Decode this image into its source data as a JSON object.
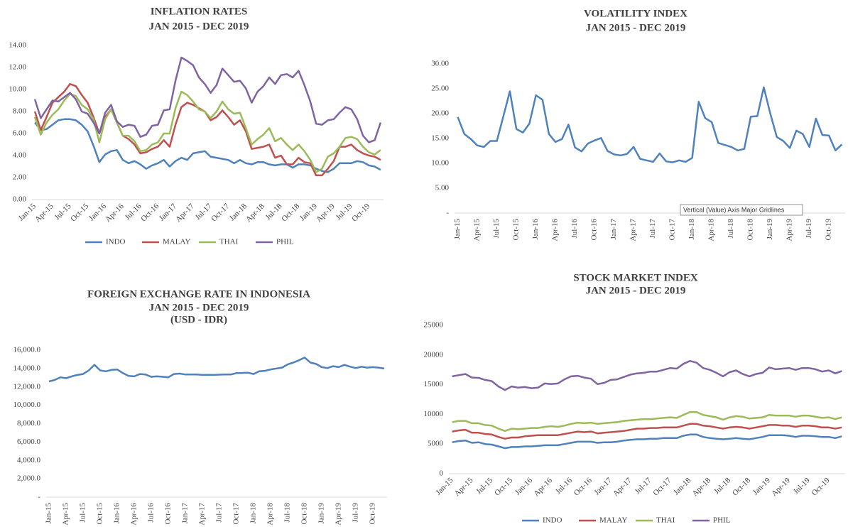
{
  "chart_data": [
    {
      "type": "line",
      "title": "INFLATION RATES",
      "subtitle": [
        "JAN 2015 - DEC 2019"
      ],
      "categories": [
        "Jan-15",
        null,
        null,
        "Apr-15",
        null,
        null,
        "Jul-15",
        null,
        null,
        "Oct-15",
        null,
        null,
        "Jan-16",
        null,
        null,
        "Apr-16",
        null,
        null,
        "Jul-16",
        null,
        null,
        "Oct-16",
        null,
        null,
        "Jan-17",
        null,
        null,
        "Apr-17",
        null,
        null,
        "Jul-17",
        null,
        null,
        "Oct-17",
        null,
        null,
        "Jan-18",
        null,
        null,
        "Apr-18",
        null,
        null,
        "Jul-18",
        null,
        null,
        "Oct-18",
        null,
        null,
        "Jan-19",
        null,
        null,
        "Apr-19",
        null,
        null,
        "Jul-19",
        null,
        null,
        "Oct-19",
        null,
        null
      ],
      "ylim": [
        0,
        14
      ],
      "yticks": [
        {
          "value": 0,
          "label": "0.00"
        },
        {
          "value": 2,
          "label": "2.00"
        },
        {
          "value": 4,
          "label": "4.00"
        },
        {
          "value": 6,
          "label": "6.00"
        },
        {
          "value": 8,
          "label": "8.00"
        },
        {
          "value": 10,
          "label": "10.00"
        },
        {
          "value": 12,
          "label": "12.00"
        },
        {
          "value": 14,
          "label": "14.00"
        }
      ],
      "legend": "bottom",
      "series": [
        {
          "name": "INDO",
          "color": "#4f81bd",
          "values": [
            7.0,
            6.3,
            6.4,
            6.8,
            7.2,
            7.3,
            7.3,
            7.2,
            6.8,
            6.2,
            4.9,
            3.4,
            4.1,
            4.4,
            4.5,
            3.6,
            3.3,
            3.5,
            3.2,
            2.8,
            3.1,
            3.3,
            3.6,
            3.0,
            3.5,
            3.8,
            3.6,
            4.2,
            4.3,
            4.4,
            3.9,
            3.8,
            3.7,
            3.6,
            3.3,
            3.6,
            3.3,
            3.2,
            3.4,
            3.4,
            3.2,
            3.1,
            3.2,
            3.2,
            2.9,
            3.2,
            3.2,
            3.1,
            2.8,
            2.6,
            2.5,
            2.8,
            3.3,
            3.3,
            3.3,
            3.5,
            3.4,
            3.1,
            3.0,
            2.7
          ]
        },
        {
          "name": "MALAY",
          "color": "#c0504d",
          "values": [
            8.0,
            6.3,
            7.5,
            8.8,
            9.3,
            9.8,
            10.5,
            10.3,
            9.5,
            8.8,
            7.5,
            6.0,
            7.5,
            8.2,
            7.0,
            5.8,
            5.5,
            5.0,
            4.2,
            4.3,
            4.6,
            4.8,
            5.4,
            4.8,
            6.8,
            8.4,
            8.8,
            8.6,
            8.3,
            8.0,
            7.2,
            7.5,
            8.1,
            7.5,
            6.8,
            7.2,
            6.2,
            4.6,
            4.7,
            4.8,
            5.0,
            3.8,
            4.0,
            3.2,
            3.2,
            3.8,
            3.4,
            3.3,
            2.2,
            2.2,
            2.8,
            3.5,
            4.8,
            4.8,
            5.0,
            4.5,
            4.2,
            4.0,
            3.9,
            3.6
          ]
        },
        {
          "name": "THAI",
          "color": "#9bbb59",
          "values": [
            7.5,
            5.9,
            7.0,
            7.7,
            8.2,
            9.0,
            9.6,
            9.4,
            8.6,
            8.2,
            7.3,
            5.2,
            7.3,
            8.2,
            7.0,
            5.8,
            5.8,
            5.3,
            4.4,
            4.5,
            5.0,
            5.2,
            6.0,
            6.0,
            8.3,
            9.8,
            9.5,
            8.9,
            8.2,
            8.0,
            7.4,
            8.0,
            8.9,
            8.2,
            7.8,
            7.9,
            6.5,
            5.0,
            5.5,
            5.9,
            6.5,
            5.3,
            5.6,
            5.0,
            4.5,
            5.0,
            4.4,
            3.6,
            2.5,
            2.8,
            3.9,
            4.2,
            4.8,
            5.6,
            5.7,
            5.5,
            4.8,
            4.3,
            4.1,
            4.5
          ]
        },
        {
          "name": "PHIL",
          "color": "#8064a2",
          "values": [
            9.1,
            7.4,
            8.2,
            9.0,
            8.9,
            9.3,
            9.7,
            9.1,
            8.0,
            7.8,
            7.0,
            6.0,
            7.9,
            8.6,
            7.1,
            6.6,
            6.8,
            6.7,
            5.7,
            5.9,
            6.7,
            6.8,
            8.1,
            8.2,
            10.8,
            12.9,
            12.6,
            12.2,
            11.1,
            10.5,
            9.7,
            10.4,
            11.9,
            11.3,
            10.7,
            10.8,
            10.1,
            8.8,
            9.8,
            10.3,
            11.1,
            10.5,
            11.3,
            11.4,
            11.1,
            11.7,
            10.4,
            8.9,
            6.9,
            6.8,
            7.2,
            7.3,
            7.9,
            8.4,
            8.2,
            7.3,
            5.8,
            5.2,
            5.4,
            7.0
          ]
        }
      ]
    },
    {
      "type": "line",
      "title": "VOLATILITY INDEX",
      "subtitle": [
        "JAN 2015 - DEC 2019"
      ],
      "categories": [
        "Jan-15",
        null,
        null,
        "Apr-15",
        null,
        null,
        "Jul-15",
        null,
        null,
        "Oct-15",
        null,
        null,
        "Jan-16",
        null,
        null,
        "Apr-16",
        null,
        null,
        "Jul-16",
        null,
        null,
        "Oct-16",
        null,
        null,
        "Jan-17",
        null,
        null,
        "Apr-17",
        null,
        null,
        "Jul-17",
        null,
        null,
        "Oct-17",
        null,
        null,
        "Jan-18",
        null,
        null,
        "Apr-18",
        null,
        null,
        "Jul-18",
        null,
        null,
        "Oct-18",
        null,
        null,
        "Jan-19",
        null,
        null,
        "Apr-19",
        null,
        null,
        "Jul-19",
        null,
        null,
        "Oct-19",
        null,
        null
      ],
      "ylim": [
        0,
        30
      ],
      "yticks": [
        {
          "value": 0,
          "label": "-"
        },
        {
          "value": 5,
          "label": "5.00"
        },
        {
          "value": 10,
          "label": "10.00"
        },
        {
          "value": 15,
          "label": "15.00"
        },
        {
          "value": 20,
          "label": "20.00"
        },
        {
          "value": 25,
          "label": "25.00"
        },
        {
          "value": 30,
          "label": "30.00"
        }
      ],
      "color": "#4f81bd",
      "values": [
        19.3,
        15.9,
        14.9,
        13.6,
        13.3,
        14.5,
        14.5,
        19.5,
        24.5,
        16.9,
        16.2,
        18.0,
        23.7,
        22.8,
        15.9,
        14.3,
        14.9,
        17.8,
        13.2,
        12.4,
        14.0,
        14.6,
        15.1,
        12.5,
        11.8,
        11.6,
        11.9,
        13.3,
        10.9,
        10.6,
        10.3,
        12.0,
        10.4,
        10.2,
        10.6,
        10.3,
        11.1,
        22.4,
        19.1,
        18.3,
        14.1,
        13.7,
        13.3,
        12.6,
        12.9,
        19.4,
        19.5,
        25.3,
        20.0,
        15.3,
        14.5,
        13.1,
        16.6,
        15.9,
        13.3,
        19.0,
        15.7,
        15.6,
        12.6,
        13.8
      ],
      "annotation": "Vertical (Value) Axis Major Gridlines"
    },
    {
      "type": "line",
      "title": "FOREIGN EXCHANGE RATE IN INDONESIA",
      "subtitle": [
        "JAN 2015 - DEC 2019",
        "(USD - IDR)"
      ],
      "categories": [
        "Jan-15",
        null,
        null,
        "Apr-15",
        null,
        null,
        "Jul-15",
        null,
        null,
        "Oct-15",
        null,
        null,
        "Jan-16",
        null,
        null,
        "Apr-16",
        null,
        null,
        "Jul-16",
        null,
        null,
        "Oct-16",
        null,
        null,
        "Jan-17",
        null,
        null,
        "Apr-17",
        null,
        null,
        "Jul-17",
        null,
        null,
        "Oct-17",
        null,
        null,
        "Jan-18",
        null,
        null,
        "Apr-18",
        null,
        null,
        "Jul-18",
        null,
        null,
        "Oct-18",
        null,
        null,
        "Jan-19",
        null,
        null,
        "Apr-19",
        null,
        null,
        "Jul-19",
        null,
        null,
        "Oct-19",
        null,
        null
      ],
      "ylim": [
        0,
        16000
      ],
      "yticks": [
        {
          "value": 0,
          "label": "-"
        },
        {
          "value": 2000,
          "label": "2,000.0"
        },
        {
          "value": 4000,
          "label": "4,000.0"
        },
        {
          "value": 6000,
          "label": "6,000.0"
        },
        {
          "value": 8000,
          "label": "8,000.0"
        },
        {
          "value": 10000,
          "label": "10,000.0"
        },
        {
          "value": 12000,
          "label": "12,000.0"
        },
        {
          "value": 14000,
          "label": "14,000.0"
        },
        {
          "value": 16000,
          "label": "16,000.0"
        }
      ],
      "color": "#4f81bd",
      "values": [
        12600,
        12750,
        13050,
        12950,
        13150,
        13300,
        13400,
        13800,
        14400,
        13800,
        13700,
        13850,
        13900,
        13500,
        13200,
        13150,
        13400,
        13350,
        13100,
        13150,
        13100,
        13050,
        13400,
        13450,
        13350,
        13350,
        13350,
        13300,
        13320,
        13300,
        13330,
        13350,
        13350,
        13500,
        13520,
        13550,
        13400,
        13700,
        13750,
        13900,
        14000,
        14100,
        14450,
        14650,
        14900,
        15200,
        14650,
        14500,
        14150,
        14050,
        14250,
        14150,
        14400,
        14200,
        14050,
        14200,
        14100,
        14150,
        14100,
        14000
      ]
    },
    {
      "type": "line",
      "title": "STOCK MARKET INDEX",
      "subtitle": [
        "JAN 2015 - DEC 2019"
      ],
      "categories": [
        "Jan-15",
        null,
        null,
        "Apr-15",
        null,
        null,
        "Jul-15",
        null,
        null,
        "Oct-15",
        null,
        null,
        "Jan-16",
        null,
        null,
        "Apr-16",
        null,
        null,
        "Jul-16",
        null,
        null,
        "Oct-16",
        null,
        null,
        "Jan-17",
        null,
        null,
        "Apr-17",
        null,
        null,
        "Jul-17",
        null,
        null,
        "Oct-17",
        null,
        null,
        "Jan-18",
        null,
        null,
        "Apr-18",
        null,
        null,
        "Jul-18",
        null,
        null,
        "Oct-18",
        null,
        null,
        "Jan-19",
        null,
        null,
        "Apr-19",
        null,
        null,
        "Jul-19",
        null,
        null,
        "Oct-19",
        null,
        null
      ],
      "ylim": [
        0,
        25000
      ],
      "yticks": [
        0,
        5000,
        10000,
        15000,
        20000,
        25000
      ],
      "legend": "bottom",
      "series": [
        {
          "name": "INDO",
          "color": "#4f81bd",
          "values": [
            5300,
            5500,
            5600,
            5200,
            5300,
            5000,
            4900,
            4600,
            4300,
            4500,
            4500,
            4600,
            4600,
            4700,
            4800,
            4800,
            4800,
            5000,
            5200,
            5400,
            5400,
            5400,
            5200,
            5300,
            5300,
            5400,
            5600,
            5700,
            5800,
            5800,
            5900,
            5900,
            6000,
            6000,
            6000,
            6400,
            6600,
            6600,
            6200,
            6000,
            5900,
            5800,
            5900,
            6000,
            5900,
            5800,
            6000,
            6200,
            6500,
            6500,
            6500,
            6400,
            6200,
            6400,
            6400,
            6300,
            6200,
            6200,
            6000,
            6300
          ]
        },
        {
          "name": "MALAY",
          "color": "#c0504d",
          "values": [
            7100,
            7300,
            7400,
            6900,
            6900,
            6700,
            6600,
            6200,
            5900,
            6100,
            6100,
            6300,
            6400,
            6500,
            6500,
            6500,
            6500,
            6700,
            6900,
            7100,
            7000,
            7100,
            6800,
            6900,
            7000,
            7100,
            7200,
            7400,
            7600,
            7600,
            7700,
            7700,
            7800,
            7800,
            7800,
            8100,
            8400,
            8400,
            8100,
            8000,
            7800,
            7600,
            7800,
            7900,
            7800,
            7600,
            7800,
            8000,
            8200,
            8200,
            8100,
            8100,
            7900,
            8100,
            8100,
            8000,
            7800,
            7800,
            7600,
            7800
          ]
        },
        {
          "name": "THAI",
          "color": "#9bbb59",
          "values": [
            8700,
            8900,
            8900,
            8500,
            8500,
            8200,
            8100,
            7600,
            7200,
            7600,
            7500,
            7600,
            7700,
            7700,
            7900,
            8000,
            7900,
            8100,
            8400,
            8600,
            8500,
            8600,
            8400,
            8500,
            8600,
            8700,
            8900,
            9000,
            9100,
            9200,
            9200,
            9300,
            9400,
            9500,
            9400,
            9900,
            10400,
            10400,
            9900,
            9700,
            9500,
            9100,
            9500,
            9700,
            9600,
            9300,
            9400,
            9500,
            9900,
            9800,
            9800,
            9800,
            9600,
            9800,
            9800,
            9600,
            9400,
            9500,
            9200,
            9500
          ]
        },
        {
          "name": "PHIL",
          "color": "#8064a2",
          "values": [
            16400,
            16600,
            16800,
            16200,
            16150,
            15800,
            15600,
            14700,
            14100,
            14700,
            14500,
            14600,
            14400,
            14500,
            15200,
            15100,
            15200,
            15900,
            16400,
            16500,
            16200,
            16000,
            15100,
            15300,
            15800,
            15900,
            16300,
            16700,
            16900,
            17000,
            17200,
            17200,
            17500,
            17800,
            17700,
            18500,
            19000,
            18700,
            17800,
            17500,
            17000,
            16400,
            17100,
            17400,
            16800,
            16400,
            16800,
            17000,
            17900,
            17600,
            17700,
            17800,
            17500,
            17800,
            17800,
            17600,
            17200,
            17400,
            16900,
            17300
          ]
        }
      ]
    }
  ]
}
